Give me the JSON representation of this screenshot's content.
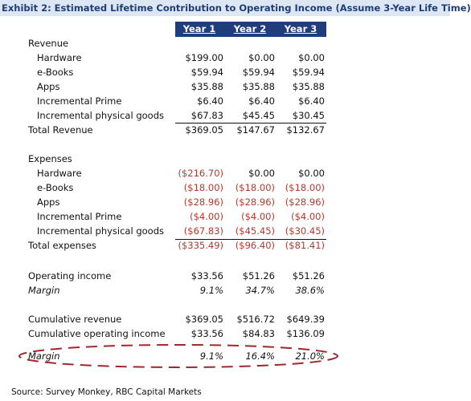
{
  "title": "Exhibit 2: Estimated Lifetime Contribution to Operating Income (Assume 3-Year Life Time)",
  "columns": [
    "Year 1",
    "Year 2",
    "Year 3"
  ],
  "revenue": {
    "heading": "Revenue",
    "items": [
      {
        "label": "Hardware",
        "values": [
          "$199.00",
          "$0.00",
          "$0.00"
        ]
      },
      {
        "label": "e-Books",
        "values": [
          "$59.94",
          "$59.94",
          "$59.94"
        ]
      },
      {
        "label": "Apps",
        "values": [
          "$35.88",
          "$35.88",
          "$35.88"
        ]
      },
      {
        "label": "Incremental Prime",
        "values": [
          "$6.40",
          "$6.40",
          "$6.40"
        ]
      },
      {
        "label": "Incremental physical goods",
        "values": [
          "$67.83",
          "$45.45",
          "$30.45"
        ]
      }
    ],
    "total": {
      "label": "Total Revenue",
      "values": [
        "$369.05",
        "$147.67",
        "$132.67"
      ]
    }
  },
  "expenses": {
    "heading": "Expenses",
    "items": [
      {
        "label": "Hardware",
        "values": [
          "($216.70)",
          "$0.00",
          "$0.00"
        ]
      },
      {
        "label": "e-Books",
        "values": [
          "($18.00)",
          "($18.00)",
          "($18.00)"
        ]
      },
      {
        "label": "Apps",
        "values": [
          "($28.96)",
          "($28.96)",
          "($28.96)"
        ]
      },
      {
        "label": "Incremental Prime",
        "values": [
          "($4.00)",
          "($4.00)",
          "($4.00)"
        ]
      },
      {
        "label": "Incremental physical goods",
        "values": [
          "($67.83)",
          "($45.45)",
          "($30.45)"
        ]
      }
    ],
    "total": {
      "label": "Total expenses",
      "values": [
        "($335.49)",
        "($96.40)",
        "($81.41)"
      ]
    }
  },
  "operating": {
    "items": [
      {
        "label": "Operating income",
        "values": [
          "$33.56",
          "$51.26",
          "$51.26"
        ]
      },
      {
        "label": "Margin",
        "values": [
          "9.1%",
          "34.7%",
          "38.6%"
        ]
      }
    ]
  },
  "cumulative": {
    "items": [
      {
        "label": "Cumulative revenue",
        "values": [
          "$369.05",
          "$516.72",
          "$649.39"
        ]
      },
      {
        "label": "Cumulative operating income",
        "values": [
          "$33.56",
          "$84.83",
          "$136.09"
        ]
      },
      {
        "label": "Margin",
        "values": [
          "9.1%",
          "16.4%",
          "21.0%"
        ]
      }
    ]
  },
  "source": "Source: Survey Monkey, RBC Capital Markets"
}
